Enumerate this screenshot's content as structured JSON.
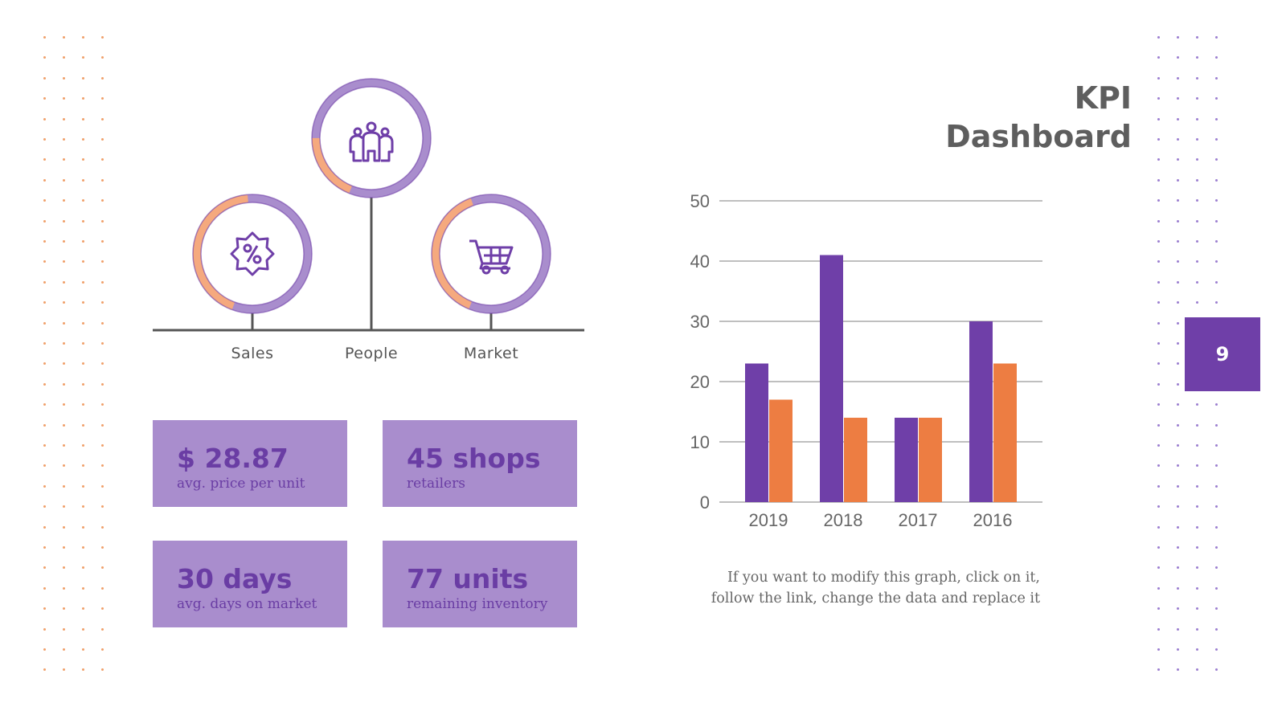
{
  "slide": {
    "title_line1": "KPI",
    "title_line2": "Dashboard",
    "page_number": "9",
    "caption_line1": "If you want to modify this graph, click on it,",
    "caption_line2": "follow the link, change the data and replace it"
  },
  "colors": {
    "purple": "#6f3fa8",
    "light_purple": "#a98dcd",
    "orange": "#ed7d42",
    "light_orange": "#f5a97e",
    "text_gray": "#5e5e5e"
  },
  "tree": {
    "items": [
      {
        "label": "Sales",
        "icon": "percent-badge-icon"
      },
      {
        "label": "People",
        "icon": "team-icon"
      },
      {
        "label": "Market",
        "icon": "shopping-cart-icon"
      }
    ]
  },
  "kpis": [
    {
      "value": "$ 28.87",
      "label": "avg. price per unit"
    },
    {
      "value": "45 shops",
      "label": "retailers"
    },
    {
      "value": "30 days",
      "label": "avg. days on market"
    },
    {
      "value": "77 units",
      "label": "remaining inventory"
    }
  ],
  "chart_data": {
    "type": "bar",
    "categories": [
      "2019",
      "2018",
      "2017",
      "2016"
    ],
    "series": [
      {
        "values": [
          23,
          41,
          14,
          30
        ],
        "color": "#6f3fa8"
      },
      {
        "values": [
          17,
          14,
          14,
          23
        ],
        "color": "#ed7d42"
      }
    ],
    "ylim": [
      0,
      50
    ],
    "yticks": [
      "0",
      "10",
      "20",
      "30",
      "40",
      "50"
    ],
    "grid": true,
    "legend": "none"
  }
}
